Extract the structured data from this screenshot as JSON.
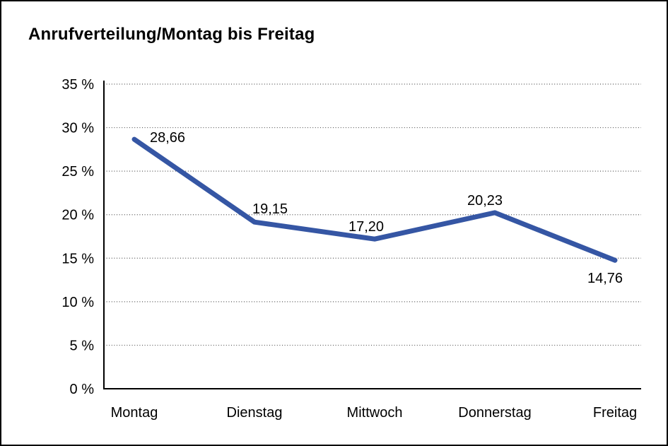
{
  "page": {
    "background_color": "#ffffff",
    "border_color": "#000000"
  },
  "chart_data": {
    "type": "line",
    "title": "Anrufverteilung/Montag bis Freitag",
    "categories": [
      "Montag",
      "Dienstag",
      "Mittwoch",
      "Donnerstag",
      "Freitag"
    ],
    "values": [
      28.66,
      19.15,
      17.2,
      20.23,
      14.76
    ],
    "value_labels": [
      "28,66",
      "19,15",
      "17,20",
      "20,23",
      "14,76"
    ],
    "xlabel": "",
    "ylabel": "",
    "ylim": [
      0,
      35
    ],
    "ytick_step": 5,
    "ytick_labels": [
      "0 %",
      "5 %",
      "10 %",
      "15 %",
      "20 %",
      "25 %",
      "30 %",
      "35 %"
    ],
    "grid": "horizontal-dotted",
    "legend": "none",
    "line_color": "#3556A4",
    "label_color": "#000000",
    "axis_color": "#000000",
    "grid_color": "#555555"
  }
}
